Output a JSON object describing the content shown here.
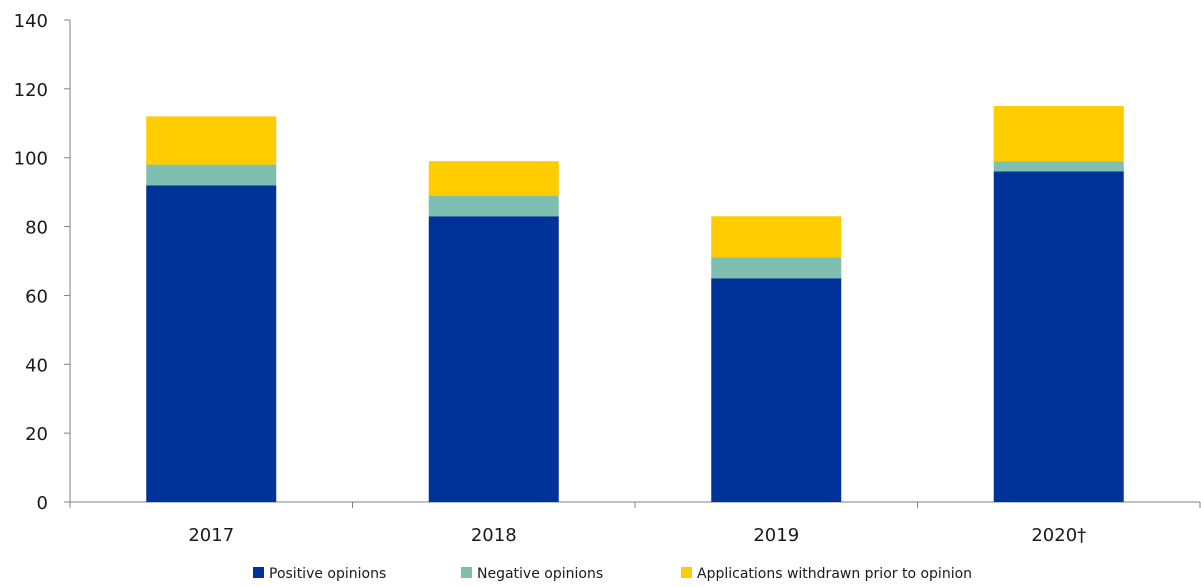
{
  "chart_data": {
    "type": "bar",
    "stacked": true,
    "categories": [
      "2017",
      "2018",
      "2019",
      "2020†"
    ],
    "series": [
      {
        "name": "Positive opinions",
        "values": [
          92,
          83,
          65,
          96
        ],
        "color": "#003399"
      },
      {
        "name": "Negative opinions",
        "values": [
          6,
          6,
          6,
          3
        ],
        "color": "#7fbfb0"
      },
      {
        "name": "Applications withdrawn prior to opinion",
        "values": [
          14,
          10,
          12,
          16
        ],
        "color": "#ffcc00"
      }
    ],
    "y_ticks": [
      0,
      20,
      40,
      60,
      80,
      100,
      120,
      140
    ],
    "ylim": [
      0,
      140
    ],
    "grid": false,
    "legend_position": "bottom"
  }
}
